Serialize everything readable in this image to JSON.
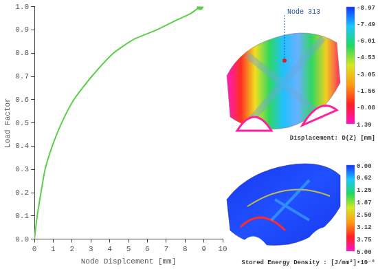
{
  "chart_data": {
    "type": "line",
    "x_label": "Node Displcement [mm]",
    "y_label": "Load Factor",
    "x": [
      0,
      0.15,
      0.35,
      0.57,
      0.95,
      1.45,
      2.1,
      3.05,
      4.2,
      5.3,
      6.5,
      7.5,
      8.3,
      8.8
    ],
    "values": [
      0,
      0.1,
      0.2,
      0.3,
      0.4,
      0.5,
      0.6,
      0.7,
      0.8,
      0.86,
      0.9,
      0.94,
      0.97,
      1.0
    ],
    "color": "#5ccf4a",
    "marker": "last",
    "xlim": [
      0,
      10
    ],
    "xticks": [
      0,
      1,
      2,
      3,
      4,
      5,
      6,
      7,
      8,
      9,
      10
    ],
    "ylim": [
      0,
      1
    ],
    "yticks": [
      {
        "value": 0,
        "label": "0.0"
      },
      0.1,
      0.2,
      0.3,
      0.4,
      0.5,
      0.6,
      0.7,
      0.8,
      0.9,
      {
        "value": 1,
        "label": "1.0"
      }
    ],
    "grid": false
  },
  "contour_plots": [
    {
      "title": "Displacement: D(Z) [mm]",
      "annotation": "Node 313",
      "colorbar": {
        "range": [
          -8.97,
          1.39
        ],
        "ticks": [
          -8.97,
          -7.49,
          -6.01,
          -4.53,
          -3.05,
          -1.56,
          -0.08,
          1.39
        ]
      }
    },
    {
      "title": "Stored Energy Density : [J/mm²]•10⁻⁶",
      "colorbar": {
        "range": [
          0,
          5
        ],
        "ticks": [
          {
            "value": 0,
            "label": "0.00"
          },
          0.62,
          1.25,
          1.87,
          {
            "value": 2.5,
            "label": "2.50"
          },
          3.12,
          3.75,
          {
            "value": 5,
            "label": "5.00"
          }
        ]
      }
    }
  ]
}
